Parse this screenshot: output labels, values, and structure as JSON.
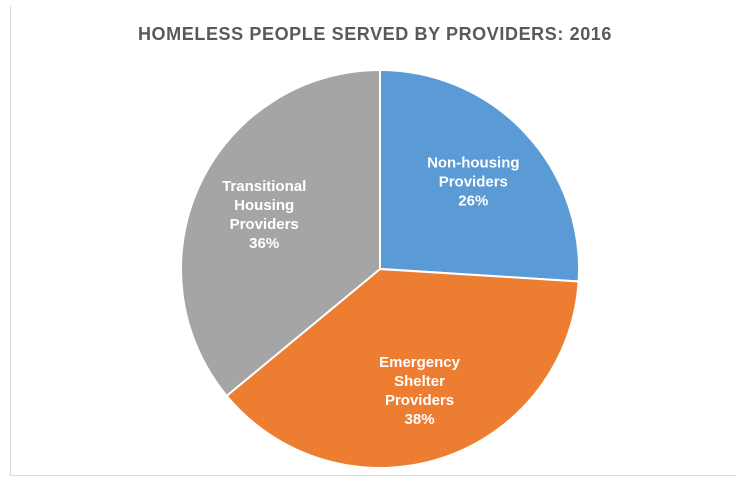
{
  "chart_data": {
    "type": "pie",
    "title": "HOMELESS PEOPLE SERVED BY PROVIDERS: 2016",
    "slices": [
      {
        "label": [
          "Non-housing",
          "Providers"
        ],
        "value": 26,
        "display": "26%",
        "color": "#5b9bd5"
      },
      {
        "label": [
          "Emergency",
          "Shelter",
          "Providers"
        ],
        "value": 38,
        "display": "38%",
        "color": "#ed7d31"
      },
      {
        "label": [
          "Transitional",
          "Housing",
          "Providers"
        ],
        "value": 36,
        "display": "36%",
        "color": "#a5a5a5"
      }
    ],
    "legend": "none",
    "start_angle_deg": 0,
    "direction": "clockwise"
  }
}
